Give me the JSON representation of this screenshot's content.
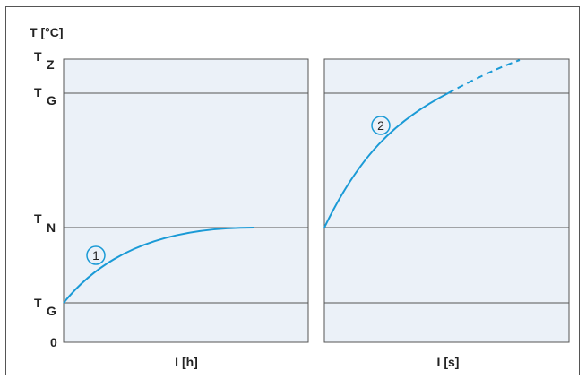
{
  "y_axis_label": "T [°C]",
  "y_ticks": [
    {
      "main": "T",
      "sub": "Z"
    },
    {
      "main": "T",
      "sub": "G"
    },
    {
      "main": "T",
      "sub": "N"
    },
    {
      "main": "T",
      "sub": "G"
    },
    {
      "main": "0",
      "sub": ""
    }
  ],
  "panels": [
    {
      "x_label": "I [h]",
      "curve_label": "1"
    },
    {
      "x_label": "I [s]",
      "curve_label": "2"
    }
  ],
  "colors": {
    "panel_fill": "#EBF1F8",
    "curve": "#1A9AD6",
    "grid": "#555555",
    "text": "#222222"
  }
}
